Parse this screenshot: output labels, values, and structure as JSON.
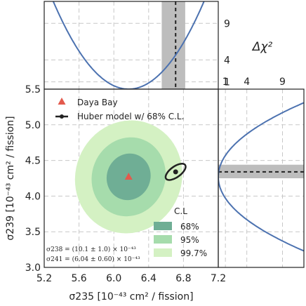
{
  "chart_data": {
    "type": "scatter",
    "annotations": [
      "σ238 = (10.1 ± 1.0) × 10⁻⁴³",
      "σ241 = (6.04 ± 0.60) × 10⁻⁴³"
    ],
    "main": {
      "xlabel": "σ235 [10⁻⁴³ cm² / fission]",
      "ylabel": "σ239 [10⁻⁴³ cm² / fission]",
      "xlim": [
        5.2,
        7.2
      ],
      "ylim": [
        3.0,
        5.5
      ],
      "xticks": [
        "5.2",
        "5.6",
        "6.0",
        "6.4",
        "6.8",
        "7.2"
      ],
      "yticks": [
        "3.0",
        "3.5",
        "4.0",
        "4.5",
        "5.0",
        "5.5"
      ],
      "grid": true,
      "legend_position": "upper-left",
      "series": [
        {
          "name": "Daya Bay",
          "kind": "point",
          "x": 6.17,
          "y": 4.27,
          "color": "#e35a4d"
        },
        {
          "name": "Huber model w/ 68% C.L.",
          "kind": "point-with-ellipse",
          "x": 6.71,
          "y": 4.34,
          "color": "#222222"
        }
      ],
      "contours": {
        "title": "C.L",
        "center": [
          6.17,
          4.27
        ],
        "levels": [
          {
            "name": "68%",
            "color": "#6fae95"
          },
          {
            "name": "95%",
            "color": "#a6dcac"
          },
          {
            "name": "99.7%",
            "color": "#d4f1c3"
          }
        ]
      }
    },
    "top_panel": {
      "ylabel": "Δχ²",
      "yticks": [
        "1",
        "4",
        "9"
      ],
      "xlim": [
        5.2,
        7.2
      ],
      "ylim": [
        0,
        12
      ],
      "curve": {
        "min_x": 6.17,
        "sigma": 0.25
      },
      "band": {
        "center": 6.71,
        "low": 6.55,
        "high": 6.82
      },
      "color": "#4c72b0"
    },
    "right_panel": {
      "xticks": [
        "1",
        "4",
        "9"
      ],
      "xlim": [
        0,
        12
      ],
      "ylim": [
        3.0,
        5.5
      ],
      "curve": {
        "min_y": 4.27,
        "sigma": 0.3
      },
      "band": {
        "center": 4.34,
        "low": 4.25,
        "high": 4.44
      },
      "color": "#4c72b0"
    }
  }
}
